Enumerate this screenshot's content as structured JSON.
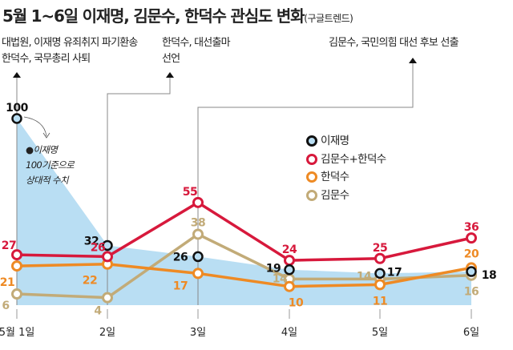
{
  "title": "5월 1~6일 이재명, 김문수, 한덕수 관심도 변화",
  "source": "(구글트렌드)",
  "annotations": [
    {
      "line1": "대법원, 이재명 유죄취지 파기환송",
      "line2": "한덕수, 국무총리 사퇴"
    },
    {
      "line1": "한덕수, 대선출마",
      "line2": "선언"
    },
    {
      "line1": "김문수, 국민의힘 대선 후보 선출",
      "line2": ""
    }
  ],
  "note": {
    "line1": "●이재명",
    "line2": "100기준으로",
    "line3": "상대적 수치"
  },
  "chart_data": {
    "type": "line",
    "title": "5월 1~6일 이재명, 김문수, 한덕수 관심도 변화",
    "categories": [
      "5월 1일",
      "2일",
      "3일",
      "4일",
      "5일",
      "6일"
    ],
    "ylim": [
      0,
      100
    ],
    "grid": false,
    "legend_placement": "top-right",
    "series": [
      {
        "name": "이재명",
        "values": [
          100,
          32,
          26,
          19,
          17,
          18
        ],
        "color": "#111111",
        "fill": "#b9def3",
        "style": "area-with-markers"
      },
      {
        "name": "김문수+한덕수",
        "values": [
          27,
          26,
          55,
          24,
          25,
          36
        ],
        "color": "#d7193c"
      },
      {
        "name": "한덕수",
        "values": [
          21,
          22,
          17,
          10,
          11,
          20
        ],
        "color": "#ee8a24"
      },
      {
        "name": "김문수",
        "values": [
          6,
          4,
          38,
          14,
          14,
          16
        ],
        "color": "#c2ab78"
      }
    ]
  }
}
